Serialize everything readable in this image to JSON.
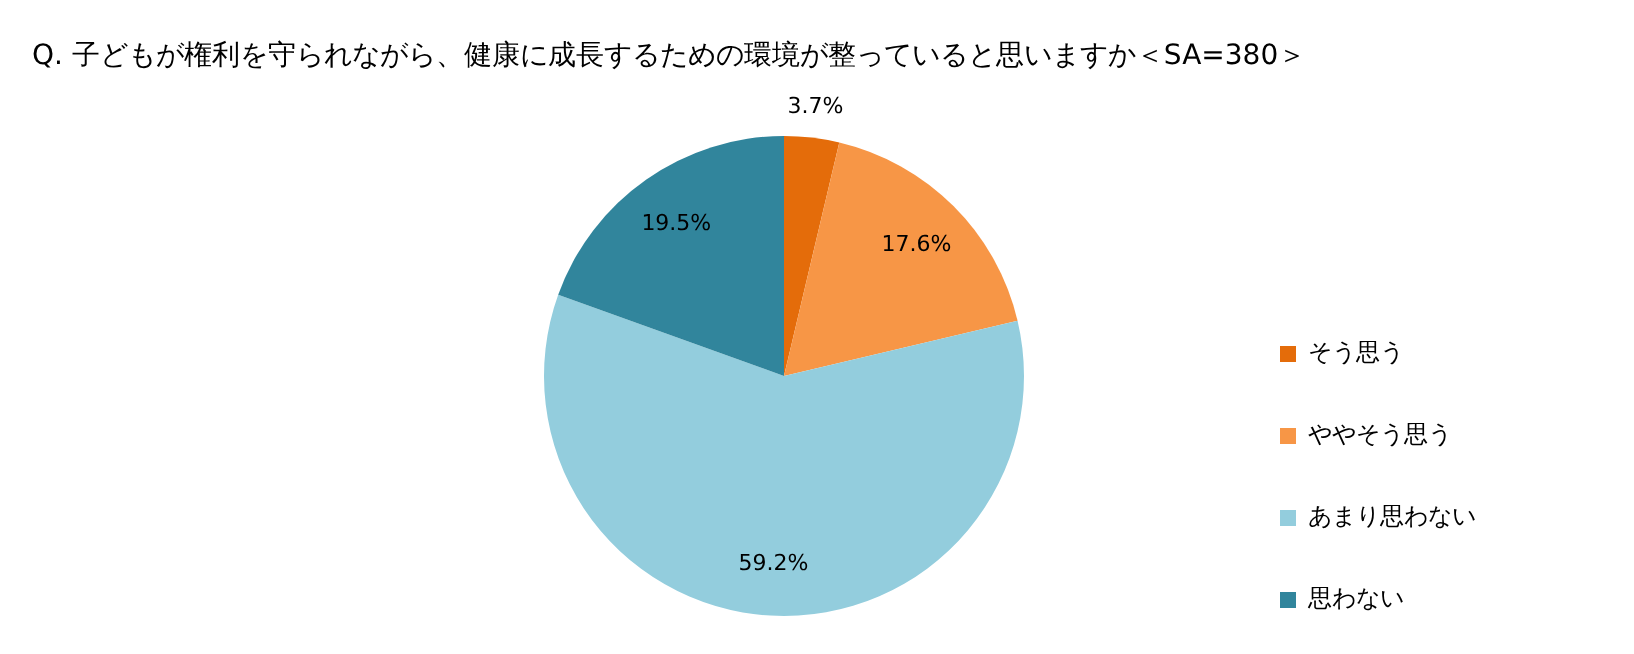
{
  "chart_data": {
    "type": "pie",
    "title": "Q.  子どもが権利を守られながら、健康に成長するための環境が整っていると思いますか＜SA=380＞",
    "categories": [
      "そう思う",
      "ややそう思う",
      "あまり思わない",
      "思わない"
    ],
    "values": [
      3.7,
      17.6,
      59.2,
      19.5
    ],
    "colors": [
      "#e46c0a",
      "#f79646",
      "#93cddd",
      "#31859c"
    ],
    "value_labels": [
      "3.7%",
      "17.6%",
      "59.2%",
      "19.5%"
    ],
    "legend": "right"
  }
}
